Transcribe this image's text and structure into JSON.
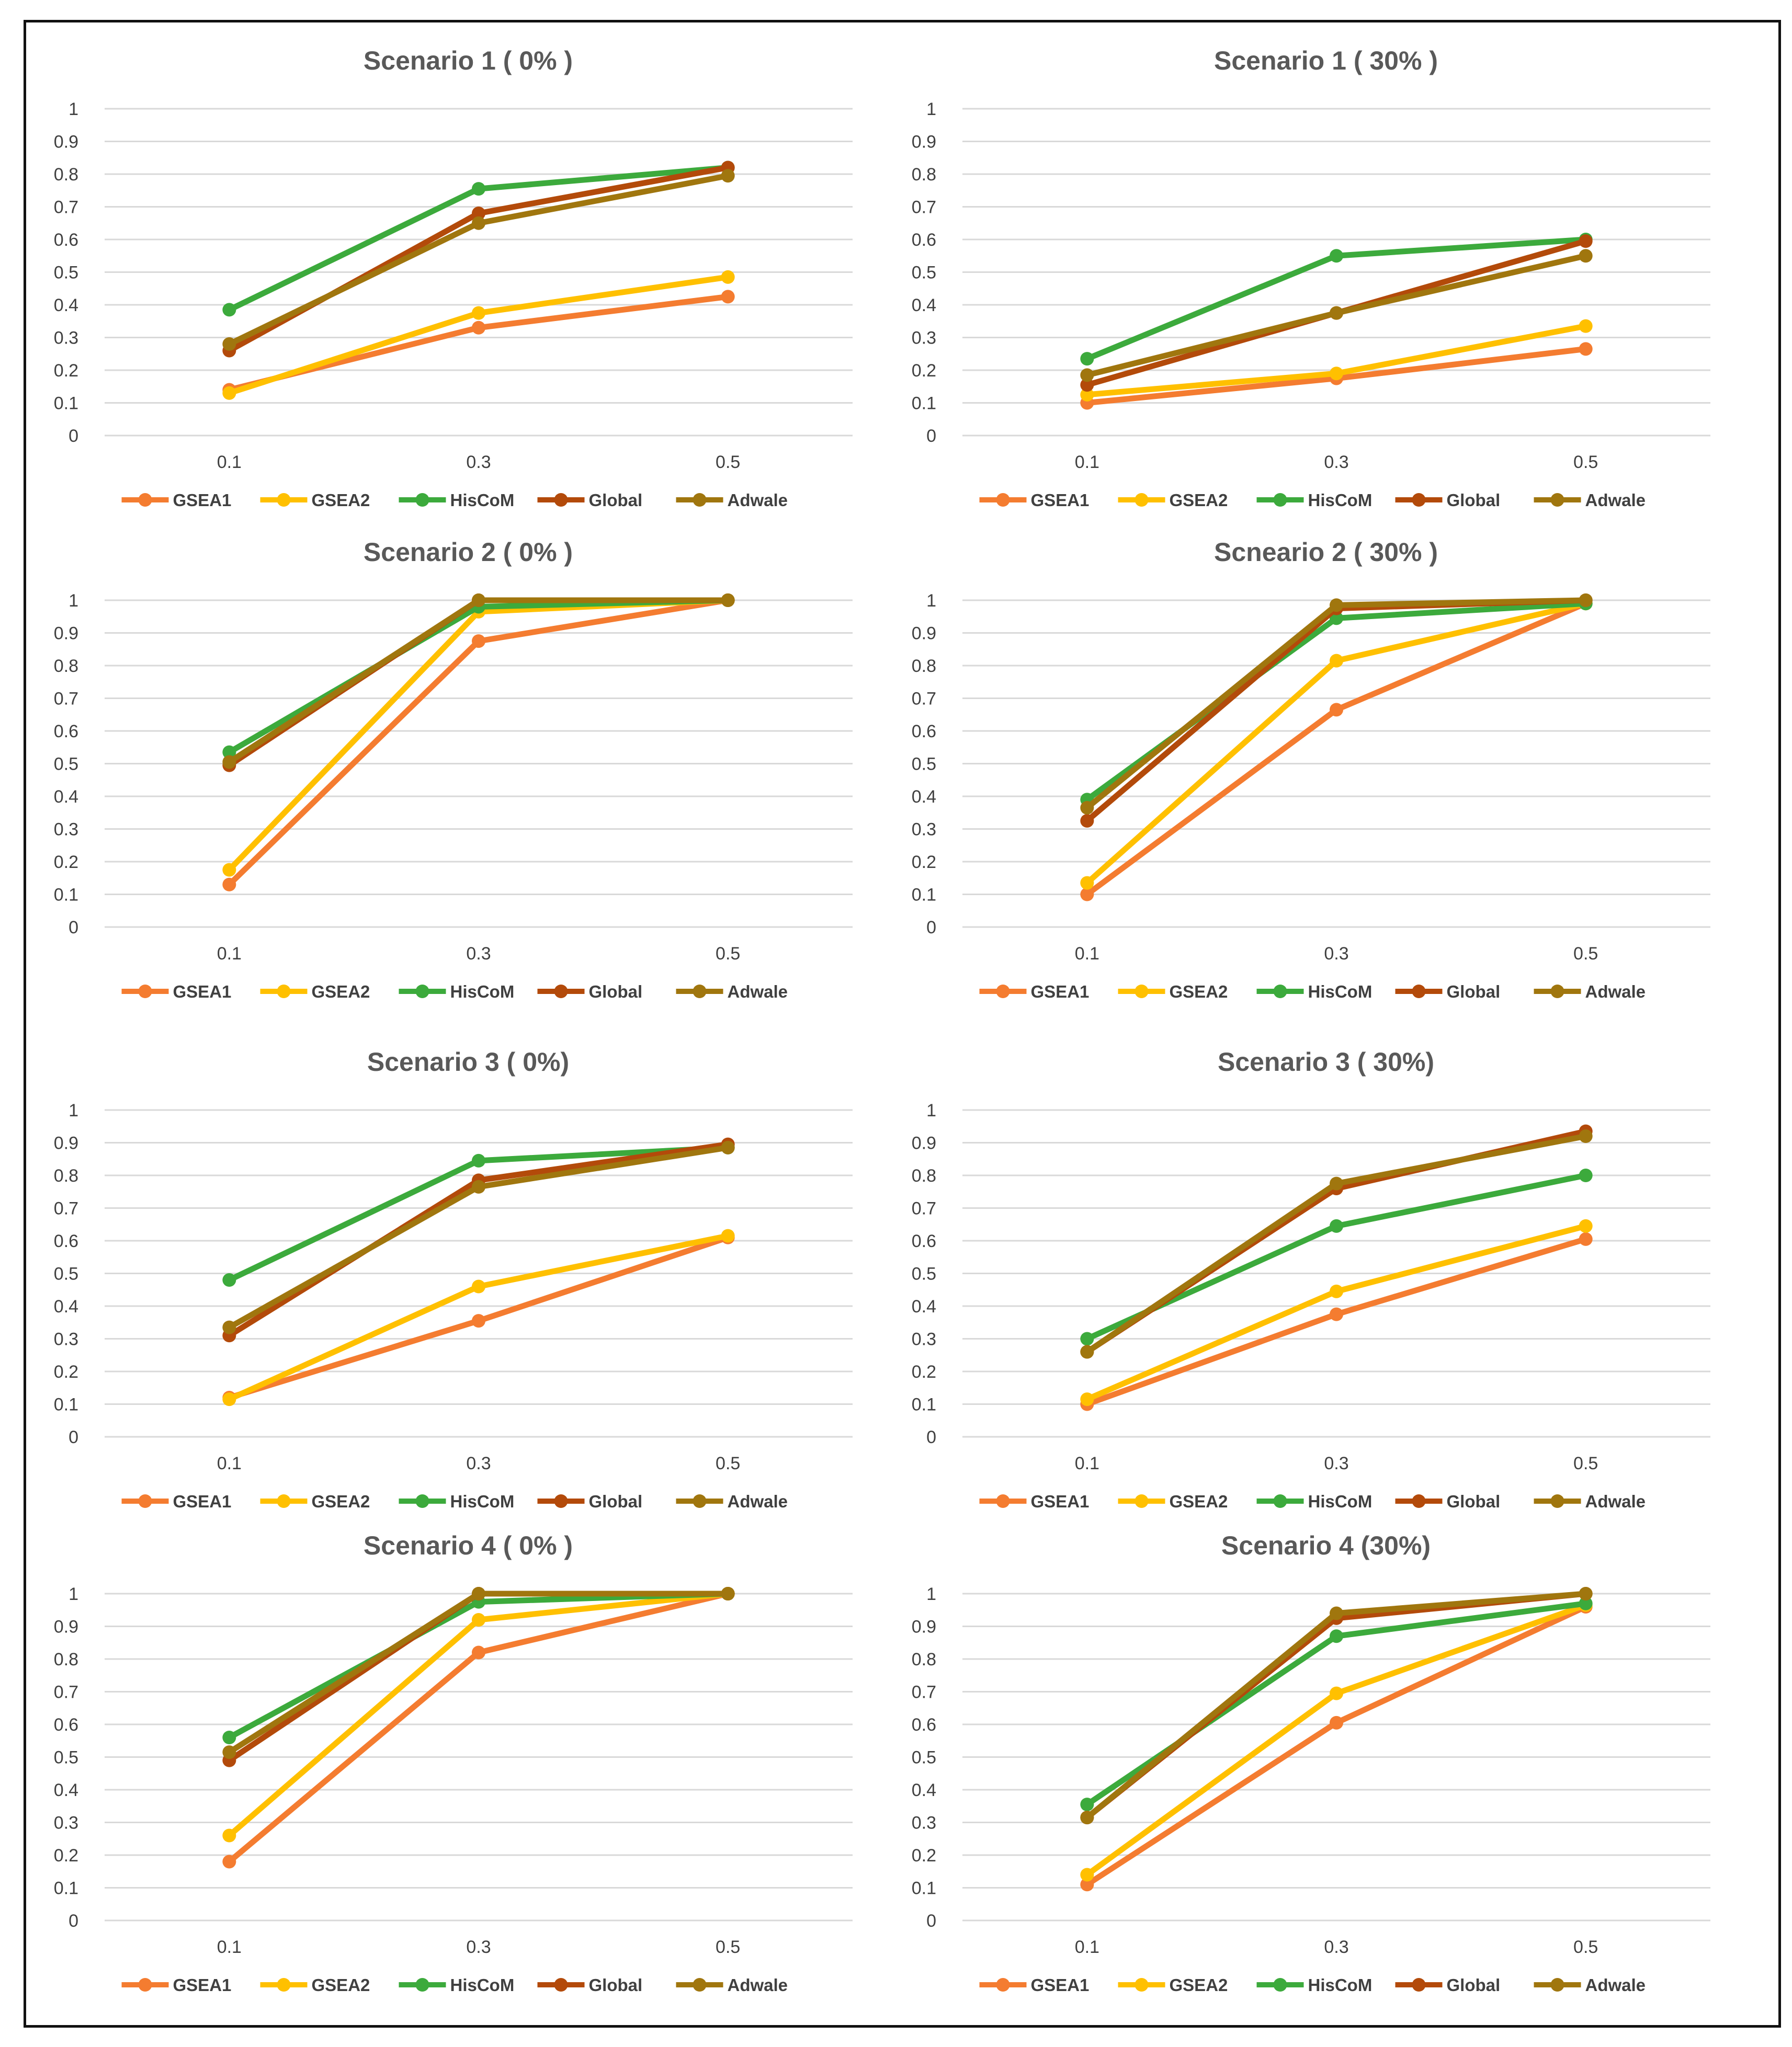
{
  "colors": {
    "GSEA1": "#F47C30",
    "GSEA2": "#FFC000",
    "HisCoM": "#3CAA3C",
    "Global": "#B34A0A",
    "Adwale": "#A0760E",
    "grid": "#D9D9D9",
    "border": "#111111"
  },
  "chart_data": [
    {
      "type": "line",
      "title": "Scenario 1 ( 0% )",
      "categories": [
        "0.1",
        "0.3",
        "0.5"
      ],
      "ylim": [
        0,
        1
      ],
      "yticks": [
        "0",
        "0.1",
        "0.2",
        "0.3",
        "0.4",
        "0.5",
        "0.6",
        "0.7",
        "0.8",
        "0.9",
        "1"
      ],
      "grid": true,
      "legend": "bottom",
      "series": [
        {
          "name": "GSEA1",
          "values": [
            0.14,
            0.33,
            0.425
          ]
        },
        {
          "name": "GSEA2",
          "values": [
            0.13,
            0.375,
            0.485
          ]
        },
        {
          "name": "HisCoM",
          "values": [
            0.385,
            0.755,
            0.82
          ]
        },
        {
          "name": "Global",
          "values": [
            0.26,
            0.68,
            0.82
          ]
        },
        {
          "name": "Adwale",
          "values": [
            0.28,
            0.65,
            0.795
          ]
        }
      ]
    },
    {
      "type": "line",
      "title": "Scenario 1 ( 30% )",
      "categories": [
        "0.1",
        "0.3",
        "0.5"
      ],
      "ylim": [
        0,
        1
      ],
      "yticks": [
        "0",
        "0.1",
        "0.2",
        "0.3",
        "0.4",
        "0.5",
        "0.6",
        "0.7",
        "0.8",
        "0.9",
        "1"
      ],
      "grid": true,
      "legend": "bottom",
      "series": [
        {
          "name": "GSEA1",
          "values": [
            0.1,
            0.175,
            0.265
          ]
        },
        {
          "name": "GSEA2",
          "values": [
            0.125,
            0.19,
            0.335
          ]
        },
        {
          "name": "HisCoM",
          "values": [
            0.235,
            0.55,
            0.6
          ]
        },
        {
          "name": "Global",
          "values": [
            0.155,
            0.375,
            0.595
          ]
        },
        {
          "name": "Adwale",
          "values": [
            0.185,
            0.375,
            0.55
          ]
        }
      ]
    },
    {
      "type": "line",
      "title": "Scenario 2 ( 0% )",
      "categories": [
        "0.1",
        "0.3",
        "0.5"
      ],
      "ylim": [
        0,
        1
      ],
      "yticks": [
        "0",
        "0.1",
        "0.2",
        "0.3",
        "0.4",
        "0.5",
        "0.6",
        "0.7",
        "0.8",
        "0.9",
        "1"
      ],
      "grid": true,
      "legend": "bottom",
      "series": [
        {
          "name": "GSEA1",
          "values": [
            0.13,
            0.875,
            1.0
          ]
        },
        {
          "name": "GSEA2",
          "values": [
            0.175,
            0.965,
            1.0
          ]
        },
        {
          "name": "HisCoM",
          "values": [
            0.535,
            0.98,
            1.0
          ]
        },
        {
          "name": "Global",
          "values": [
            0.495,
            1.0,
            1.0
          ]
        },
        {
          "name": "Adwale",
          "values": [
            0.505,
            1.0,
            1.0
          ]
        }
      ]
    },
    {
      "type": "line",
      "title": "Scneario 2 ( 30% )",
      "categories": [
        "0.1",
        "0.3",
        "0.5"
      ],
      "ylim": [
        0,
        1
      ],
      "yticks": [
        "0",
        "0.1",
        "0.2",
        "0.3",
        "0.4",
        "0.5",
        "0.6",
        "0.7",
        "0.8",
        "0.9",
        "1"
      ],
      "grid": true,
      "legend": "bottom",
      "series": [
        {
          "name": "GSEA1",
          "values": [
            0.1,
            0.665,
            0.99
          ]
        },
        {
          "name": "GSEA2",
          "values": [
            0.135,
            0.815,
            0.99
          ]
        },
        {
          "name": "HisCoM",
          "values": [
            0.39,
            0.945,
            0.99
          ]
        },
        {
          "name": "Global",
          "values": [
            0.325,
            0.975,
            1.0
          ]
        },
        {
          "name": "Adwale",
          "values": [
            0.365,
            0.985,
            1.0
          ]
        }
      ]
    },
    {
      "type": "line",
      "title": "Scenario 3 ( 0%)",
      "categories": [
        "0.1",
        "0.3",
        "0.5"
      ],
      "ylim": [
        0,
        1
      ],
      "yticks": [
        "0",
        "0.1",
        "0.2",
        "0.3",
        "0.4",
        "0.5",
        "0.6",
        "0.7",
        "0.8",
        "0.9",
        "1"
      ],
      "grid": true,
      "legend": "bottom",
      "series": [
        {
          "name": "GSEA1",
          "values": [
            0.12,
            0.355,
            0.61
          ]
        },
        {
          "name": "GSEA2",
          "values": [
            0.115,
            0.46,
            0.615
          ]
        },
        {
          "name": "HisCoM",
          "values": [
            0.48,
            0.845,
            0.885
          ]
        },
        {
          "name": "Global",
          "values": [
            0.31,
            0.785,
            0.895
          ]
        },
        {
          "name": "Adwale",
          "values": [
            0.335,
            0.765,
            0.885
          ]
        }
      ]
    },
    {
      "type": "line",
      "title": "Scenario 3 ( 30%)",
      "categories": [
        "0.1",
        "0.3",
        "0.5"
      ],
      "ylim": [
        0,
        1
      ],
      "yticks": [
        "0",
        "0.1",
        "0.2",
        "0.3",
        "0.4",
        "0.5",
        "0.6",
        "0.7",
        "0.8",
        "0.9",
        "1"
      ],
      "grid": true,
      "legend": "bottom",
      "series": [
        {
          "name": "GSEA1",
          "values": [
            0.1,
            0.375,
            0.605
          ]
        },
        {
          "name": "GSEA2",
          "values": [
            0.115,
            0.445,
            0.645
          ]
        },
        {
          "name": "HisCoM",
          "values": [
            0.3,
            0.645,
            0.8
          ]
        },
        {
          "name": "Global",
          "values": [
            0.26,
            0.76,
            0.935
          ]
        },
        {
          "name": "Adwale",
          "values": [
            0.26,
            0.775,
            0.92
          ]
        }
      ]
    },
    {
      "type": "line",
      "title": "Scenario 4  ( 0% )",
      "categories": [
        "0.1",
        "0.3",
        "0.5"
      ],
      "ylim": [
        0,
        1
      ],
      "yticks": [
        "0",
        "0.1",
        "0.2",
        "0.3",
        "0.4",
        "0.5",
        "0.6",
        "0.7",
        "0.8",
        "0.9",
        "1"
      ],
      "grid": true,
      "legend": "bottom",
      "series": [
        {
          "name": "GSEA1",
          "values": [
            0.18,
            0.82,
            1.0
          ]
        },
        {
          "name": "GSEA2",
          "values": [
            0.26,
            0.92,
            1.0
          ]
        },
        {
          "name": "HisCoM",
          "values": [
            0.56,
            0.975,
            1.0
          ]
        },
        {
          "name": "Global",
          "values": [
            0.49,
            1.0,
            1.0
          ]
        },
        {
          "name": "Adwale",
          "values": [
            0.515,
            1.0,
            1.0
          ]
        }
      ]
    },
    {
      "type": "line",
      "title": "Scenario 4 (30%)",
      "categories": [
        "0.1",
        "0.3",
        "0.5"
      ],
      "ylim": [
        0,
        1
      ],
      "yticks": [
        "0",
        "0.1",
        "0.2",
        "0.3",
        "0.4",
        "0.5",
        "0.6",
        "0.7",
        "0.8",
        "0.9",
        "1"
      ],
      "grid": true,
      "legend": "bottom",
      "series": [
        {
          "name": "GSEA1",
          "values": [
            0.11,
            0.605,
            0.96
          ]
        },
        {
          "name": "GSEA2",
          "values": [
            0.14,
            0.695,
            0.965
          ]
        },
        {
          "name": "HisCoM",
          "values": [
            0.355,
            0.87,
            0.97
          ]
        },
        {
          "name": "Global",
          "values": [
            0.315,
            0.925,
            1.0
          ]
        },
        {
          "name": "Adwale",
          "values": [
            0.315,
            0.94,
            1.0
          ]
        }
      ]
    }
  ]
}
